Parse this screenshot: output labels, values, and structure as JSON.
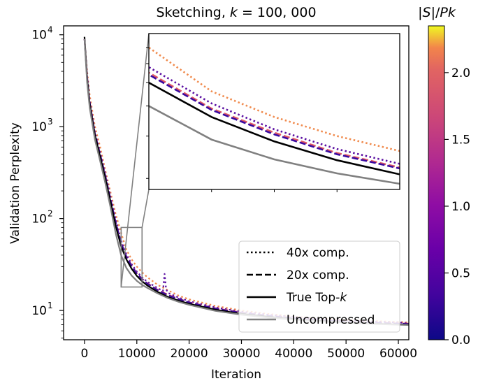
{
  "chart_data": {
    "type": "line",
    "title": "Sketching, k = 100,000",
    "title_parts": {
      "prefix": "Sketching, ",
      "var": "k",
      "suffix": " = 100, 000"
    },
    "xlabel": "Iteration",
    "ylabel": "Validation Perplexity",
    "xlim": [
      -4000,
      62000
    ],
    "ylim": [
      4.8,
      12500
    ],
    "yscale": "log",
    "xticks": [
      0,
      10000,
      20000,
      30000,
      40000,
      50000,
      60000
    ],
    "xtick_labels": [
      "0",
      "10000",
      "20000",
      "30000",
      "40000",
      "50000",
      "60000"
    ],
    "yticks": [
      10,
      100,
      1000,
      10000
    ],
    "ytick_labels": [
      {
        "base": "10",
        "exp": "1"
      },
      {
        "base": "10",
        "exp": "2"
      },
      {
        "base": "10",
        "exp": "3"
      },
      {
        "base": "10",
        "exp": "4"
      }
    ],
    "grid": false,
    "legend_position": "lower-right",
    "legend": [
      {
        "label": "40x comp.",
        "style": "dotted"
      },
      {
        "label": "20x comp.",
        "style": "dashed"
      },
      {
        "label": "True Top-",
        "label_var": "k",
        "style": "solid"
      },
      {
        "label": "Uncompressed",
        "style": "solid-gray"
      }
    ],
    "colorbar": {
      "label": "|S|/Pk",
      "label_parts": {
        "pre": "|",
        "v1": "S",
        "mid": "|/",
        "v2": "Pk"
      },
      "range": [
        0,
        2.35
      ],
      "ticks": [
        "0.0",
        "0.5",
        "1.0",
        "1.5",
        "2.0"
      ],
      "colormap": "plasma"
    },
    "zoom_region": {
      "x": [
        7000,
        11000
      ],
      "y": [
        18,
        80
      ]
    },
    "series": [
      {
        "name": "40x comp.",
        "style": "dotted",
        "color": "#f08b4e",
        "x": [
          0,
          500,
          1000,
          2000,
          3000,
          4000,
          5000,
          6000,
          7000,
          8000,
          9000,
          10000,
          11000,
          12000,
          14000,
          16000,
          18000,
          20000,
          25000,
          30000,
          35000,
          40000,
          45000,
          50000,
          55000,
          60000,
          62000
        ],
        "y": [
          9000,
          4000,
          2200,
          1000,
          600,
          330,
          190,
          110,
          70,
          46,
          36,
          30,
          26,
          23,
          19,
          16.5,
          14.5,
          13.2,
          11.2,
          10,
          9.2,
          8.6,
          8.2,
          7.9,
          7.7,
          7.5,
          7.4
        ]
      },
      {
        "name": "40x comp.",
        "style": "dotted",
        "color": "#5b10a2",
        "x": [
          0,
          500,
          1000,
          2000,
          3000,
          4000,
          5000,
          6000,
          7000,
          8000,
          9000,
          10000,
          11000,
          12000,
          14000,
          15000,
          15300,
          15600,
          16000,
          18000,
          20000,
          25000,
          30000,
          35000,
          40000,
          45000,
          50000,
          55000,
          60000,
          62000
        ],
        "y": [
          9000,
          3600,
          1900,
          870,
          520,
          300,
          170,
          96,
          58,
          41,
          32,
          26.5,
          23,
          20.5,
          17.5,
          16.3,
          25,
          17,
          15.5,
          13.8,
          12.6,
          10.8,
          9.7,
          9,
          8.5,
          8.1,
          7.8,
          7.6,
          7.4,
          7.3
        ]
      },
      {
        "name": "20x comp.",
        "style": "dashed",
        "color": "#e05a64",
        "x": [
          0,
          500,
          1000,
          2000,
          3000,
          4000,
          5000,
          6000,
          7000,
          8000,
          9000,
          10000,
          11000,
          12000,
          14000,
          16000,
          18000,
          20000,
          25000,
          30000,
          35000,
          40000,
          45000,
          50000,
          55000,
          60000,
          62000
        ],
        "y": [
          9000,
          3500,
          1850,
          840,
          500,
          290,
          160,
          90,
          55,
          39,
          31,
          25.5,
          22.2,
          19.8,
          16.8,
          14.8,
          13.4,
          12.3,
          10.6,
          9.5,
          8.8,
          8.3,
          7.9,
          7.6,
          7.4,
          7.25,
          7.2
        ]
      },
      {
        "name": "20x comp.",
        "style": "dashed",
        "color": "#3a0aa0",
        "x": [
          0,
          500,
          1000,
          2000,
          3000,
          4000,
          5000,
          6000,
          7000,
          8000,
          9000,
          10000,
          11000,
          12000,
          14000,
          16000,
          18000,
          20000,
          25000,
          30000,
          35000,
          40000,
          45000,
          50000,
          55000,
          60000,
          62000
        ],
        "y": [
          9000,
          3450,
          1830,
          830,
          495,
          287,
          158,
          89,
          54,
          38.5,
          30.5,
          25.2,
          22,
          19.6,
          16.6,
          14.6,
          13.3,
          12.2,
          10.5,
          9.4,
          8.75,
          8.25,
          7.85,
          7.55,
          7.35,
          7.2,
          7.15
        ]
      },
      {
        "name": "True Top-k",
        "style": "solid",
        "color": "#000000",
        "x": [
          0,
          500,
          1000,
          2000,
          3000,
          4000,
          5000,
          6000,
          7000,
          8000,
          9000,
          10000,
          11000,
          12000,
          14000,
          16000,
          18000,
          20000,
          25000,
          30000,
          35000,
          40000,
          45000,
          50000,
          55000,
          60000,
          62000
        ],
        "y": [
          9500,
          3300,
          1750,
          800,
          470,
          270,
          150,
          82,
          50,
          36,
          28.5,
          23.8,
          20.8,
          18.7,
          15.9,
          14,
          12.8,
          11.8,
          10.2,
          9.2,
          8.55,
          8.05,
          7.7,
          7.4,
          7.2,
          7.05,
          7
        ]
      },
      {
        "name": "Uncompressed",
        "style": "solid",
        "color": "#808080",
        "x": [
          0,
          500,
          1000,
          2000,
          3000,
          4000,
          5000,
          6000,
          7000,
          8000,
          9000,
          10000,
          11000,
          12000,
          14000,
          16000,
          18000,
          20000,
          25000,
          30000,
          35000,
          40000,
          45000,
          50000,
          55000,
          60000,
          62000
        ],
        "y": [
          9000,
          3000,
          1600,
          720,
          420,
          240,
          130,
          68,
          40,
          29,
          24,
          21,
          19,
          17.6,
          15.3,
          13.6,
          12.4,
          11.5,
          9.9,
          9,
          8.4,
          7.95,
          7.6,
          7.35,
          7.15,
          7,
          6.95
        ]
      }
    ]
  }
}
